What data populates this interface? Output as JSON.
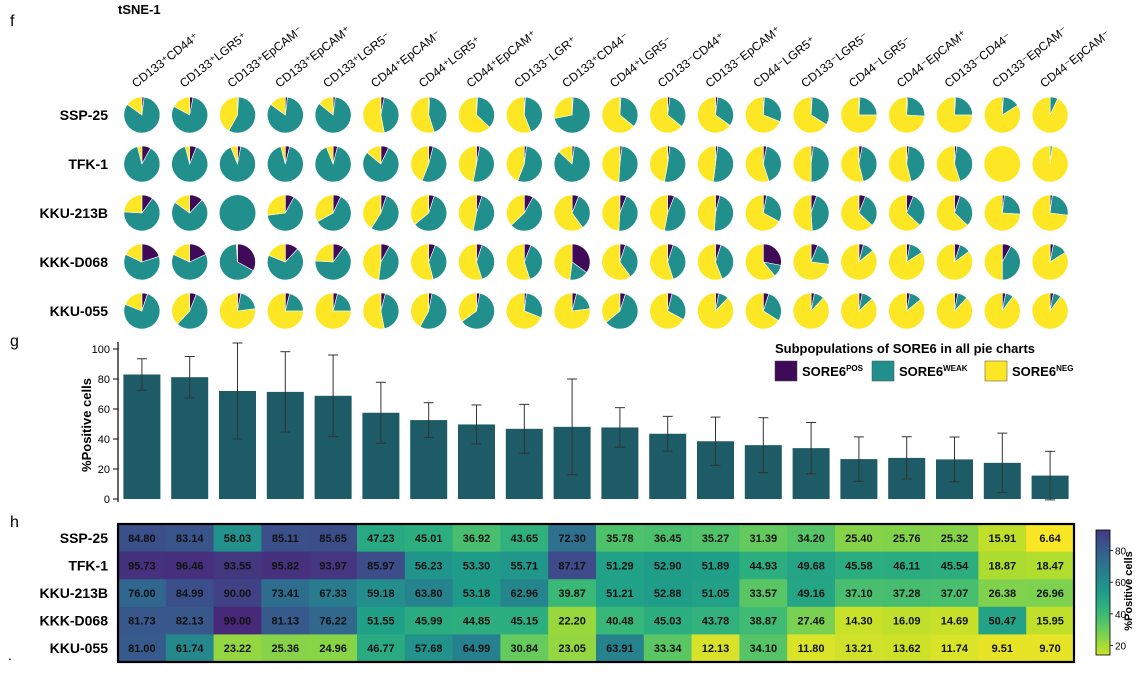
{
  "panel_labels": {
    "f": "f",
    "g": "g",
    "h": "h",
    "footnote": "."
  },
  "colors": {
    "pos": "#3f0a57",
    "weak": "#21908d",
    "neg": "#fde725",
    "bar": "#1d5b66",
    "pie_border": "#ffffff",
    "heatmap_scale": [
      "#fde725",
      "#b5de2b",
      "#6ece58",
      "#35b779",
      "#1f9e89",
      "#26828e",
      "#31688e",
      "#3e4989",
      "#482878"
    ]
  },
  "chart_data": [
    {
      "type": "pie",
      "title": "tSNE-1",
      "columns": [
        "CD133⁺CD44⁺",
        "CD133⁺LGR5⁺",
        "CD133⁺EpCAM⁻",
        "CD133⁺EpCAM⁺",
        "CD133⁺LGR5⁻",
        "CD44⁺EpCAM⁻",
        "CD44⁺LGR5⁺",
        "CD44⁺EpCAM⁺",
        "CD133⁻LGR⁺",
        "CD133⁺CD44⁻",
        "CD44⁺LGR5⁻",
        "CD133⁻CD44⁺",
        "CD133⁻EpCAM⁺",
        "CD44⁻LGR5⁺",
        "CD133⁻LGR5⁻",
        "CD44⁻LGR5⁻",
        "CD44⁻EpCAM⁺",
        "CD133⁻CD44⁻",
        "CD133⁻EpCAM⁻",
        "CD44⁻EpCAM⁻"
      ],
      "rows": [
        "SSP-25",
        "TFK-1",
        "KKU-213B",
        "KKK-D068",
        "KKU-055"
      ],
      "legend_title": "Subpopulations of SORE6 in all pie charts",
      "legend": [
        {
          "base": "SORE6",
          "sup": "POS",
          "color_key": "pos"
        },
        {
          "base": "SORE6",
          "sup": "WEAK",
          "color_key": "weak"
        },
        {
          "base": "SORE6",
          "sup": "NEG",
          "color_key": "neg"
        }
      ],
      "slices_pos_weak": [
        [
          [
            2,
            83
          ],
          [
            3,
            80
          ],
          [
            1,
            57
          ],
          [
            2,
            83
          ],
          [
            2,
            84
          ],
          [
            3,
            44
          ],
          [
            1,
            44
          ],
          [
            1,
            36
          ],
          [
            1,
            43
          ],
          [
            1,
            71
          ],
          [
            1,
            35
          ],
          [
            2,
            34
          ],
          [
            2,
            33
          ],
          [
            1,
            30
          ],
          [
            1,
            33
          ],
          [
            1,
            24
          ],
          [
            1,
            25
          ],
          [
            1,
            24
          ],
          [
            1,
            15
          ],
          [
            0,
            7
          ]
        ],
        [
          [
            8,
            88
          ],
          [
            6,
            90
          ],
          [
            3,
            91
          ],
          [
            4,
            92
          ],
          [
            4,
            90
          ],
          [
            7,
            79
          ],
          [
            4,
            52
          ],
          [
            3,
            50
          ],
          [
            2,
            54
          ],
          [
            2,
            85
          ],
          [
            2,
            49
          ],
          [
            2,
            51
          ],
          [
            2,
            50
          ],
          [
            3,
            42
          ],
          [
            2,
            48
          ],
          [
            3,
            43
          ],
          [
            2,
            44
          ],
          [
            2,
            43
          ],
          [
            0,
            0
          ],
          [
            0,
            2
          ]
        ],
        [
          [
            10,
            66
          ],
          [
            12,
            73
          ],
          [
            0,
            100
          ],
          [
            8,
            65
          ],
          [
            7,
            60
          ],
          [
            5,
            54
          ],
          [
            5,
            59
          ],
          [
            5,
            48
          ],
          [
            8,
            55
          ],
          [
            6,
            34
          ],
          [
            6,
            45
          ],
          [
            6,
            47
          ],
          [
            4,
            47
          ],
          [
            3,
            30
          ],
          [
            5,
            44
          ],
          [
            6,
            31
          ],
          [
            6,
            31
          ],
          [
            5,
            32
          ],
          [
            2,
            24
          ],
          [
            2,
            25
          ]
        ],
        [
          [
            20,
            62
          ],
          [
            18,
            64
          ],
          [
            33,
            66
          ],
          [
            12,
            69
          ],
          [
            10,
            66
          ],
          [
            8,
            44
          ],
          [
            6,
            40
          ],
          [
            5,
            40
          ],
          [
            6,
            39
          ],
          [
            35,
            17
          ],
          [
            5,
            35
          ],
          [
            5,
            40
          ],
          [
            5,
            39
          ],
          [
            28,
            11
          ],
          [
            6,
            21
          ],
          [
            4,
            10
          ],
          [
            3,
            13
          ],
          [
            5,
            10
          ],
          [
            8,
            42
          ],
          [
            3,
            13
          ]
        ],
        [
          [
            5,
            76
          ],
          [
            6,
            56
          ],
          [
            3,
            20
          ],
          [
            4,
            21
          ],
          [
            4,
            21
          ],
          [
            4,
            43
          ],
          [
            3,
            55
          ],
          [
            3,
            62
          ],
          [
            2,
            29
          ],
          [
            4,
            19
          ],
          [
            5,
            59
          ],
          [
            4,
            29
          ],
          [
            3,
            9
          ],
          [
            5,
            29
          ],
          [
            3,
            9
          ],
          [
            3,
            10
          ],
          [
            3,
            11
          ],
          [
            3,
            9
          ],
          [
            3,
            7
          ],
          [
            3,
            7
          ]
        ]
      ]
    },
    {
      "type": "bar",
      "title": "",
      "ylabel": "%Positive cells",
      "ylim": [
        0,
        100
      ],
      "yticks": [
        0,
        20,
        40,
        60,
        80,
        100
      ],
      "values": [
        83.0,
        81.2,
        72.0,
        71.4,
        68.8,
        57.5,
        52.6,
        49.7,
        46.8,
        48.1,
        47.7,
        43.5,
        38.5,
        35.9,
        33.9,
        26.6,
        27.4,
        26.4,
        24.1,
        15.6
      ],
      "error": [
        10.5,
        13.8,
        32.0,
        26.8,
        27.2,
        20.3,
        11.6,
        13.0,
        16.3,
        31.9,
        13.2,
        11.6,
        16.1,
        18.3,
        17.1,
        14.8,
        14.1,
        14.9,
        19.8,
        16.2
      ]
    },
    {
      "type": "heatmap",
      "title": "",
      "rows": [
        "SSP-25",
        "TFK-1",
        "KKU-213B",
        "KKK-D068",
        "KKU-055"
      ],
      "colorbar_label": "%Positive cells",
      "colorbar_ticks": [
        20,
        40,
        60,
        80
      ],
      "vmin": 6,
      "vmax": 99,
      "values": [
        [
          "84.80",
          "83.14",
          "58.03",
          "85.11",
          "85.65",
          "47.23",
          "45.01",
          "36.92",
          "43.65",
          "72.30",
          "35.78",
          "36.45",
          "35.27",
          "31.39",
          "34.20",
          "25.40",
          "25.76",
          "25.32",
          "15.91",
          "6.64"
        ],
        [
          "95.73",
          "96.46",
          "93.55",
          "95.82",
          "93.97",
          "85.97",
          "56.23",
          "53.30",
          "55.71",
          "87.17",
          "51.29",
          "52.90",
          "51.89",
          "44.93",
          "49.68",
          "45.58",
          "46.11",
          "45.54",
          "18.87",
          "18.47"
        ],
        [
          "76.00",
          "84.99",
          "90.00",
          "73.41",
          "67.33",
          "59.18",
          "63.80",
          "53.18",
          "62.96",
          "39.87",
          "51.21",
          "52.88",
          "51.05",
          "33.57",
          "49.16",
          "37.10",
          "37.28",
          "37.07",
          "26.38",
          "26.96"
        ],
        [
          "81.73",
          "82.13",
          "99.00",
          "81.13",
          "76.22",
          "51.55",
          "45.99",
          "44.85",
          "45.15",
          "22.20",
          "40.48",
          "45.03",
          "43.78",
          "38.87",
          "27.46",
          "14.30",
          "16.09",
          "14.69",
          "50.47",
          "15.95"
        ],
        [
          "81.00",
          "61.74",
          "23.22",
          "25.36",
          "24.96",
          "46.77",
          "57.68",
          "64.99",
          "30.84",
          "23.05",
          "63.91",
          "33.34",
          "12.13",
          "34.10",
          "11.80",
          "13.21",
          "13.62",
          "11.74",
          "9.51",
          "9.70"
        ]
      ]
    }
  ]
}
